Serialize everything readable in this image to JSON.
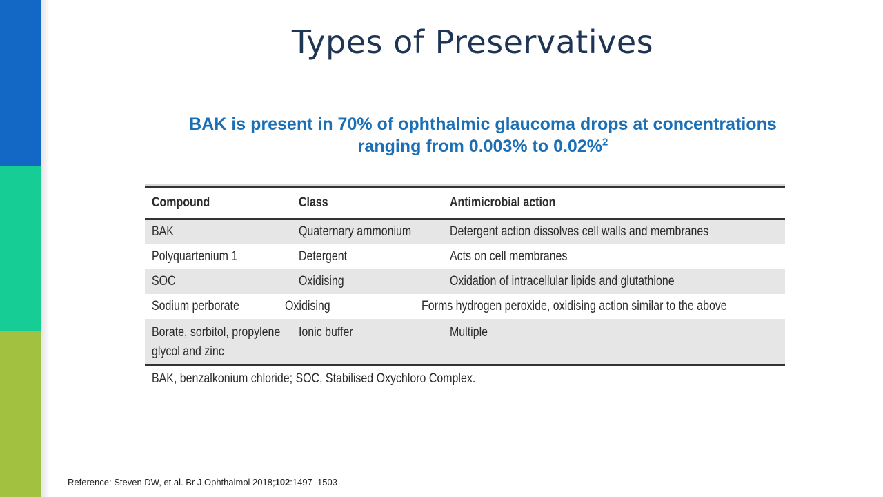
{
  "slide": {
    "title": "Types of Preservatives",
    "subtitle_line1": "BAK is present in 70% of ophthalmic glaucoma drops at concentrations",
    "subtitle_line2": "ranging from 0.003% to 0.02%",
    "subtitle_sup": "2"
  },
  "table": {
    "headers": [
      "Compound",
      "Class",
      "Antimicrobial action"
    ],
    "rows": [
      [
        "BAK",
        "Quaternary ammonium",
        "Detergent action dissolves cell walls and membranes"
      ],
      [
        "Polyquartenium 1",
        "Detergent",
        "Acts on cell membranes"
      ],
      [
        "SOC",
        "Oxidising",
        "Oxidation of intracellular lipids and glutathione"
      ],
      [
        "Sodium perborate",
        "Oxidising",
        "Forms hydrogen peroxide, oxidising action similar to the above"
      ],
      [
        "Borate, sorbitol, propylene",
        "Ionic buffer",
        "Multiple"
      ]
    ],
    "last_row_line2": "glycol and zinc",
    "footnote": "BAK, benzalkonium chloride; SOC, Stabilised Oxychloro Complex."
  },
  "reference": {
    "prefix": "Reference: Steven DW, et al. Br J Ophthalmol 2018;",
    "volume": "102",
    "pages": ":1497–1503"
  },
  "colors": {
    "bar_blue": "#1268c4",
    "bar_teal": "#17cd96",
    "bar_green": "#a2c140",
    "title": "#1f3556",
    "subtitle": "#1a6fb5",
    "row_shade": "#e6e6e6"
  }
}
